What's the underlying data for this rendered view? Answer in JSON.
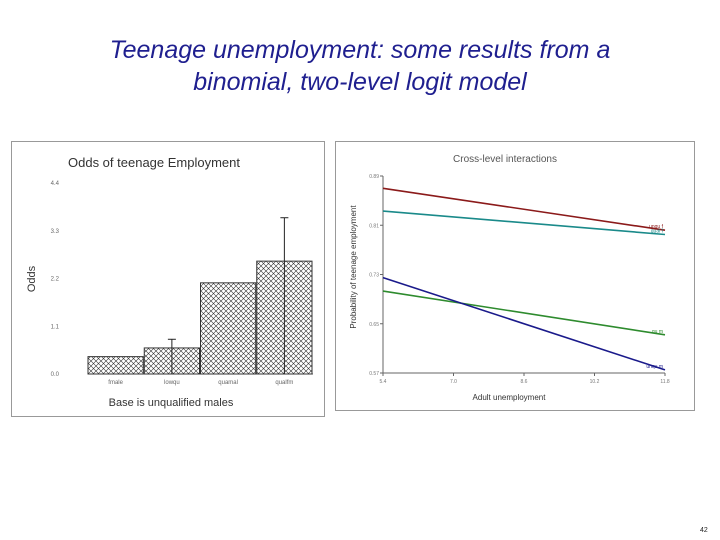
{
  "slide": {
    "title_line1": "Teenage unemployment: some results from a",
    "title_line2": "binomial, two-level logit model",
    "page_number": "42"
  },
  "chart_data": [
    {
      "type": "bar",
      "title": "Odds of teenage Employment",
      "xlabel": "Base is unqualified males",
      "ylabel": "Odds",
      "categories": [
        "fmale",
        "lowqu",
        "quamal",
        "qualfm"
      ],
      "values": [
        0.4,
        0.6,
        2.1,
        2.6
      ],
      "error_upper": [
        0.4,
        0.8,
        2.1,
        3.6
      ],
      "ylim": [
        0,
        4.4
      ],
      "yticks": [
        0.0,
        1.1,
        2.2,
        3.3,
        4.4
      ],
      "ytick_labels": [
        "0.0",
        "1.1",
        "2.2",
        "3.3",
        "4.4"
      ],
      "pattern": "cross-hatch",
      "colors": {
        "bar": "#000000",
        "border": "#333333"
      }
    },
    {
      "type": "line",
      "title": "Cross-level interactions",
      "xlabel": "Adult unemployment",
      "ylabel": "Probability of teenage employment",
      "xlim": [
        5.4,
        11.8
      ],
      "ylim": [
        0.57,
        0.89
      ],
      "xticks": [
        5.4,
        7.0,
        8.6,
        10.2,
        11.8
      ],
      "xtick_labels": [
        "5.4",
        "7.0",
        "8.6",
        "10.2",
        "11.8"
      ],
      "yticks": [
        0.57,
        0.65,
        0.73,
        0.81,
        0.89
      ],
      "ytick_labels": [
        "0.57",
        "0.65",
        "0.73",
        "0.81",
        "0.89"
      ],
      "grid": false,
      "series": [
        {
          "name": "unqu f",
          "color": "#8b1a1a",
          "x": [
            5.4,
            11.8
          ],
          "y": [
            0.87,
            0.802
          ]
        },
        {
          "name": "qual f",
          "color": "#1a8a8a",
          "x": [
            5.4,
            11.8
          ],
          "y": [
            0.833,
            0.795
          ]
        },
        {
          "name": "qu m",
          "color": "#2e8b2e",
          "x": [
            5.4,
            11.8
          ],
          "y": [
            0.703,
            0.632
          ]
        },
        {
          "name": "unqu m",
          "color": "#1a1a8b",
          "x": [
            5.4,
            11.8
          ],
          "y": [
            0.725,
            0.575
          ]
        }
      ]
    }
  ]
}
